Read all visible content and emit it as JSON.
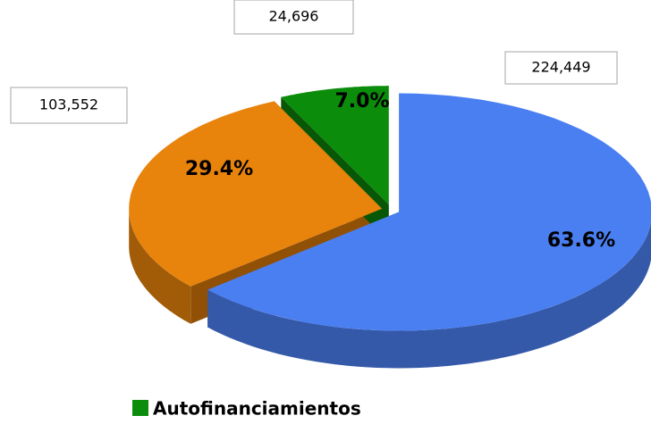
{
  "chart_data": {
    "type": "pie3d",
    "categories": [
      null,
      null,
      "Autofinanciamientos"
    ],
    "values": [
      224449,
      103552,
      24696
    ],
    "value_labels": [
      "224,449",
      "103,552",
      "24,696"
    ],
    "percentages": [
      63.6,
      29.4,
      7.0
    ],
    "percentage_labels": [
      "63.6%",
      "29.4%",
      "7.0%"
    ],
    "colors": [
      "#4a7ff2",
      "#e8830c",
      "#0b8c0b"
    ],
    "legend": "bottom"
  }
}
